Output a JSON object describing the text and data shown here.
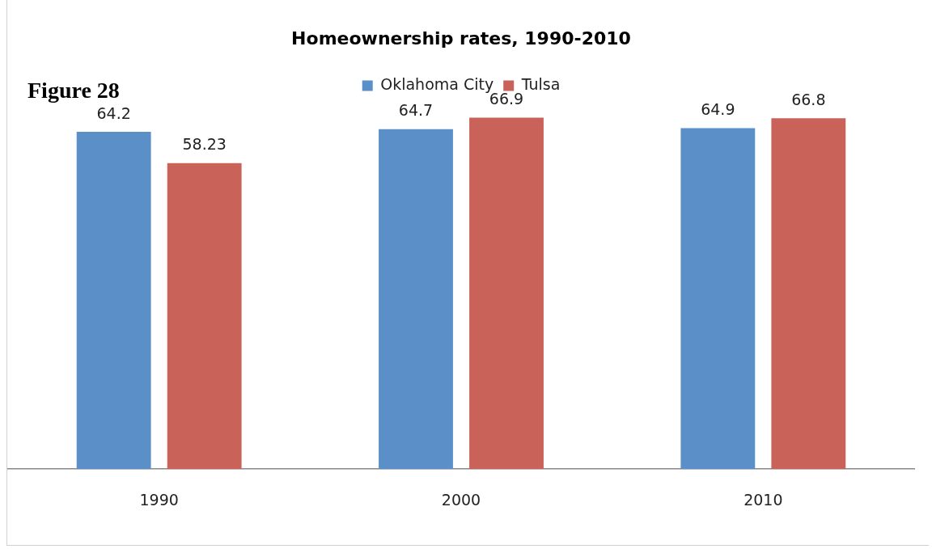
{
  "chart_data": {
    "type": "bar",
    "title": "Homeownership rates, 1990-2010",
    "annotations": [
      "Figure 28"
    ],
    "categories": [
      "1990",
      "2000",
      "2010"
    ],
    "series": [
      {
        "name": "Oklahoma City",
        "color": "#5b8fc7",
        "values": [
          64.2,
          64.7,
          64.9
        ]
      },
      {
        "name": "Tulsa",
        "color": "#c9635a",
        "values": [
          58.23,
          66.9,
          66.8
        ]
      }
    ],
    "data_labels": true,
    "legend": "top",
    "grid": false
  }
}
